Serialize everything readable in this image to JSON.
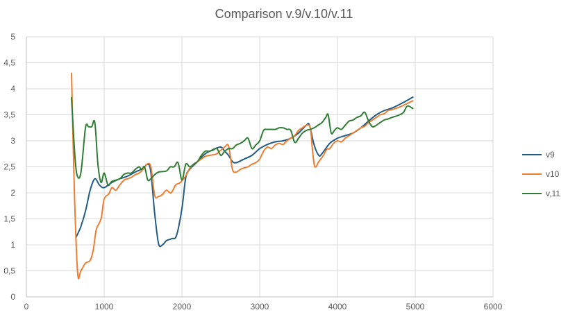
{
  "chart_data": {
    "type": "line",
    "title": "Comparison v.9/v.10/v.11",
    "xlabel": "",
    "ylabel": "",
    "xlim": [
      0,
      6000
    ],
    "ylim": [
      0,
      5
    ],
    "x_ticks": [
      0,
      1000,
      2000,
      3000,
      4000,
      5000,
      6000
    ],
    "x_tick_labels": [
      "0",
      "1000",
      "2000",
      "3000",
      "4000",
      "5000",
      "6000"
    ],
    "y_ticks": [
      0,
      0.5,
      1,
      1.5,
      2,
      2.5,
      3,
      3.5,
      4,
      4.5,
      5
    ],
    "y_tick_labels": [
      "0",
      "0,5",
      "1",
      "1,5",
      "2",
      "2,5",
      "3",
      "3,5",
      "4",
      "4,5",
      "5"
    ],
    "grid": "both",
    "legend_position": "right",
    "series": [
      {
        "name": "v9",
        "color": "#1f5c86",
        "points": [
          [
            640,
            1.15
          ],
          [
            700,
            1.35
          ],
          [
            760,
            1.65
          ],
          [
            820,
            2.05
          ],
          [
            880,
            2.27
          ],
          [
            940,
            2.15
          ],
          [
            1000,
            2.1
          ],
          [
            1100,
            2.2
          ],
          [
            1200,
            2.27
          ],
          [
            1300,
            2.32
          ],
          [
            1400,
            2.4
          ],
          [
            1500,
            2.47
          ],
          [
            1560,
            2.55
          ],
          [
            1600,
            2.4
          ],
          [
            1650,
            1.6
          ],
          [
            1700,
            1.02
          ],
          [
            1750,
            1.0
          ],
          [
            1800,
            1.08
          ],
          [
            1870,
            1.12
          ],
          [
            1930,
            1.18
          ],
          [
            2000,
            1.7
          ],
          [
            2050,
            2.3
          ],
          [
            2100,
            2.45
          ],
          [
            2200,
            2.6
          ],
          [
            2300,
            2.75
          ],
          [
            2400,
            2.83
          ],
          [
            2500,
            2.88
          ],
          [
            2550,
            2.8
          ],
          [
            2600,
            2.72
          ],
          [
            2650,
            2.6
          ],
          [
            2700,
            2.58
          ],
          [
            2800,
            2.65
          ],
          [
            2900,
            2.72
          ],
          [
            3000,
            2.85
          ],
          [
            3100,
            2.93
          ],
          [
            3200,
            2.98
          ],
          [
            3300,
            3.0
          ],
          [
            3400,
            3.05
          ],
          [
            3500,
            3.15
          ],
          [
            3600,
            3.3
          ],
          [
            3640,
            3.3
          ],
          [
            3700,
            2.92
          ],
          [
            3760,
            2.72
          ],
          [
            3800,
            2.75
          ],
          [
            3900,
            2.95
          ],
          [
            4000,
            3.05
          ],
          [
            4100,
            3.1
          ],
          [
            4200,
            3.15
          ],
          [
            4300,
            3.25
          ],
          [
            4400,
            3.38
          ],
          [
            4500,
            3.5
          ],
          [
            4600,
            3.58
          ],
          [
            4700,
            3.63
          ],
          [
            4800,
            3.7
          ],
          [
            4900,
            3.78
          ],
          [
            4970,
            3.84
          ]
        ]
      },
      {
        "name": "v10",
        "color": "#ed7d31",
        "points": [
          [
            580,
            4.3
          ],
          [
            620,
            1.9
          ],
          [
            660,
            0.45
          ],
          [
            700,
            0.5
          ],
          [
            760,
            0.65
          ],
          [
            820,
            0.7
          ],
          [
            860,
            0.9
          ],
          [
            900,
            1.3
          ],
          [
            960,
            1.5
          ],
          [
            1000,
            1.88
          ],
          [
            1060,
            1.98
          ],
          [
            1100,
            2.1
          ],
          [
            1150,
            2.05
          ],
          [
            1200,
            2.15
          ],
          [
            1260,
            2.25
          ],
          [
            1300,
            2.27
          ],
          [
            1350,
            2.3
          ],
          [
            1400,
            2.35
          ],
          [
            1450,
            2.38
          ],
          [
            1500,
            2.45
          ],
          [
            1550,
            2.55
          ],
          [
            1600,
            2.5
          ],
          [
            1650,
            1.95
          ],
          [
            1700,
            1.93
          ],
          [
            1750,
            1.97
          ],
          [
            1800,
            2.05
          ],
          [
            1860,
            2.0
          ],
          [
            1920,
            2.15
          ],
          [
            1980,
            2.2
          ],
          [
            2050,
            2.33
          ],
          [
            2100,
            2.47
          ],
          [
            2150,
            2.55
          ],
          [
            2200,
            2.6
          ],
          [
            2250,
            2.65
          ],
          [
            2300,
            2.7
          ],
          [
            2350,
            2.72
          ],
          [
            2400,
            2.73
          ],
          [
            2450,
            2.75
          ],
          [
            2500,
            2.82
          ],
          [
            2550,
            2.88
          ],
          [
            2600,
            2.9
          ],
          [
            2650,
            2.45
          ],
          [
            2700,
            2.4
          ],
          [
            2750,
            2.45
          ],
          [
            2800,
            2.48
          ],
          [
            2850,
            2.5
          ],
          [
            2900,
            2.55
          ],
          [
            2950,
            2.58
          ],
          [
            3000,
            2.65
          ],
          [
            3050,
            2.8
          ],
          [
            3100,
            2.88
          ],
          [
            3150,
            2.85
          ],
          [
            3200,
            2.92
          ],
          [
            3250,
            2.95
          ],
          [
            3300,
            2.93
          ],
          [
            3350,
            3.0
          ],
          [
            3400,
            3.05
          ],
          [
            3450,
            3.1
          ],
          [
            3500,
            3.2
          ],
          [
            3550,
            3.25
          ],
          [
            3600,
            3.3
          ],
          [
            3650,
            3.25
          ],
          [
            3680,
            2.8
          ],
          [
            3710,
            2.5
          ],
          [
            3760,
            2.6
          ],
          [
            3820,
            2.72
          ],
          [
            3860,
            2.83
          ],
          [
            3900,
            2.85
          ],
          [
            3950,
            2.95
          ],
          [
            4000,
            3.0
          ],
          [
            4050,
            2.98
          ],
          [
            4100,
            3.05
          ],
          [
            4150,
            3.1
          ],
          [
            4200,
            3.15
          ],
          [
            4250,
            3.2
          ],
          [
            4300,
            3.25
          ],
          [
            4350,
            3.28
          ],
          [
            4400,
            3.35
          ],
          [
            4450,
            3.4
          ],
          [
            4500,
            3.45
          ],
          [
            4550,
            3.5
          ],
          [
            4600,
            3.52
          ],
          [
            4650,
            3.58
          ],
          [
            4700,
            3.6
          ],
          [
            4800,
            3.65
          ],
          [
            4900,
            3.72
          ],
          [
            4970,
            3.77
          ]
        ]
      },
      {
        "name": "v,11",
        "color": "#2e7d32",
        "points": [
          [
            580,
            3.83
          ],
          [
            620,
            2.8
          ],
          [
            650,
            2.35
          ],
          [
            700,
            2.38
          ],
          [
            760,
            3.25
          ],
          [
            800,
            3.27
          ],
          [
            840,
            3.27
          ],
          [
            880,
            3.35
          ],
          [
            920,
            2.55
          ],
          [
            960,
            2.2
          ],
          [
            1000,
            2.38
          ],
          [
            1050,
            2.15
          ],
          [
            1100,
            2.22
          ],
          [
            1200,
            2.27
          ],
          [
            1250,
            2.35
          ],
          [
            1300,
            2.38
          ],
          [
            1350,
            2.38
          ],
          [
            1400,
            2.45
          ],
          [
            1450,
            2.5
          ],
          [
            1480,
            2.45
          ],
          [
            1520,
            2.5
          ],
          [
            1560,
            2.25
          ],
          [
            1600,
            2.27
          ],
          [
            1650,
            2.35
          ],
          [
            1700,
            2.4
          ],
          [
            1800,
            2.42
          ],
          [
            1850,
            2.5
          ],
          [
            1900,
            2.5
          ],
          [
            1950,
            2.58
          ],
          [
            2000,
            2.25
          ],
          [
            2050,
            2.55
          ],
          [
            2100,
            2.5
          ],
          [
            2150,
            2.55
          ],
          [
            2200,
            2.6
          ],
          [
            2250,
            2.72
          ],
          [
            2300,
            2.8
          ],
          [
            2350,
            2.8
          ],
          [
            2400,
            2.82
          ],
          [
            2450,
            2.85
          ],
          [
            2500,
            2.72
          ],
          [
            2550,
            2.8
          ],
          [
            2600,
            2.85
          ],
          [
            2650,
            2.85
          ],
          [
            2700,
            2.92
          ],
          [
            2750,
            2.95
          ],
          [
            2800,
            3.0
          ],
          [
            2850,
            3.05
          ],
          [
            2900,
            2.85
          ],
          [
            2950,
            2.92
          ],
          [
            3000,
            3.0
          ],
          [
            3050,
            3.2
          ],
          [
            3100,
            3.22
          ],
          [
            3200,
            3.22
          ],
          [
            3250,
            3.25
          ],
          [
            3300,
            3.25
          ],
          [
            3350,
            3.22
          ],
          [
            3400,
            3.2
          ],
          [
            3450,
            2.97
          ],
          [
            3500,
            3.05
          ],
          [
            3550,
            3.15
          ],
          [
            3600,
            3.2
          ],
          [
            3650,
            3.22
          ],
          [
            3700,
            3.25
          ],
          [
            3750,
            3.3
          ],
          [
            3800,
            3.35
          ],
          [
            3850,
            3.45
          ],
          [
            3880,
            3.5
          ],
          [
            3920,
            3.15
          ],
          [
            3960,
            3.2
          ],
          [
            4000,
            3.25
          ],
          [
            4050,
            3.22
          ],
          [
            4100,
            3.3
          ],
          [
            4150,
            3.38
          ],
          [
            4200,
            3.4
          ],
          [
            4250,
            3.45
          ],
          [
            4300,
            3.48
          ],
          [
            4350,
            3.55
          ],
          [
            4400,
            3.38
          ],
          [
            4450,
            3.27
          ],
          [
            4500,
            3.3
          ],
          [
            4550,
            3.35
          ],
          [
            4600,
            3.4
          ],
          [
            4650,
            3.42
          ],
          [
            4700,
            3.45
          ],
          [
            4800,
            3.5
          ],
          [
            4850,
            3.55
          ],
          [
            4900,
            3.67
          ],
          [
            4970,
            3.62
          ]
        ]
      }
    ]
  }
}
